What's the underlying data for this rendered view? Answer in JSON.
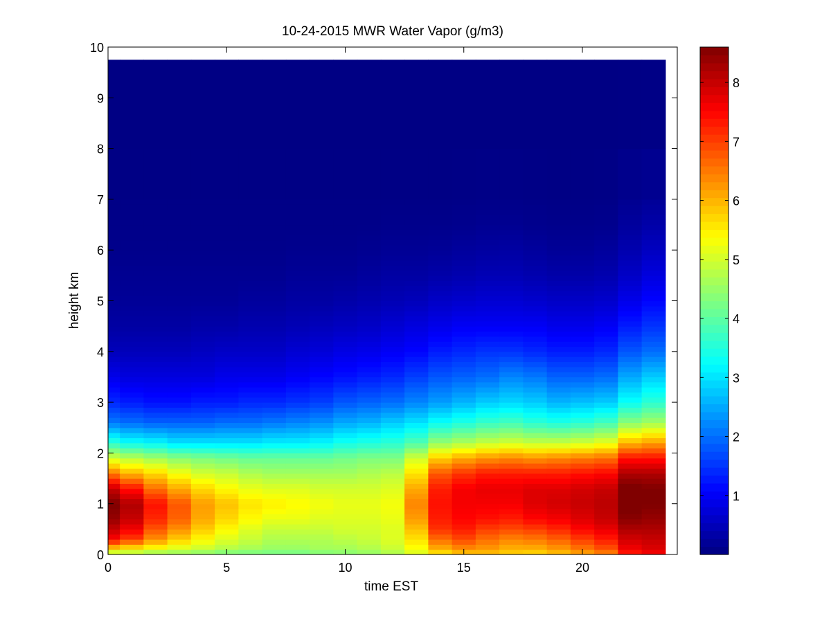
{
  "chart_data": {
    "type": "heatmap",
    "title": "10-24-2015 MWR Water Vapor (g/m3)",
    "xlabel": "time EST",
    "ylabel": "height km",
    "xlim": [
      0,
      24
    ],
    "ylim": [
      0,
      10
    ],
    "x_ticks": [
      0,
      5,
      10,
      15,
      20
    ],
    "y_ticks": [
      0,
      1,
      2,
      3,
      4,
      5,
      6,
      7,
      8,
      9,
      10
    ],
    "colorbar": {
      "colormap": "jet",
      "range": [
        0,
        8.6
      ],
      "ticks": [
        1,
        2,
        3,
        4,
        5,
        6,
        7,
        8
      ]
    },
    "x_range_data": [
      0,
      23.5
    ],
    "y_range_data": [
      0,
      9.75
    ],
    "x": [
      0,
      1,
      2,
      3,
      4,
      5,
      6,
      7,
      8,
      9,
      10,
      11,
      12,
      13,
      14,
      15,
      16,
      17,
      18,
      19,
      20,
      21,
      22,
      23
    ],
    "height_profiles": {
      "heights": [
        0,
        0.1,
        0.3,
        0.5,
        0.7,
        1.0,
        1.3,
        1.6,
        1.9,
        2.2,
        2.6,
        3.0,
        3.5,
        4.0,
        4.5,
        5.0,
        5.5,
        6.0,
        6.5,
        7.0,
        8.0,
        9.75
      ],
      "values_by_time": [
        [
          4.5,
          5.6,
          7.5,
          8.0,
          8.4,
          8.6,
          8.0,
          6.5,
          5.0,
          3.6,
          2.1,
          1.4,
          0.9,
          0.5,
          0.3,
          0.2,
          0.15,
          0.1,
          0.08,
          0.06,
          0.04,
          0.03
        ],
        [
          4.5,
          5.4,
          7.0,
          7.6,
          8.0,
          8.2,
          7.4,
          6.0,
          4.8,
          3.3,
          2.0,
          1.3,
          0.8,
          0.5,
          0.3,
          0.2,
          0.15,
          0.1,
          0.08,
          0.06,
          0.04,
          0.03
        ],
        [
          4.3,
          5.2,
          6.3,
          6.8,
          7.2,
          7.4,
          6.6,
          5.7,
          4.6,
          3.2,
          1.9,
          1.2,
          0.8,
          0.5,
          0.3,
          0.2,
          0.15,
          0.1,
          0.08,
          0.06,
          0.04,
          0.03
        ],
        [
          4.3,
          5.0,
          5.8,
          6.3,
          6.7,
          6.8,
          6.1,
          5.3,
          4.4,
          3.0,
          1.9,
          1.2,
          0.8,
          0.5,
          0.3,
          0.2,
          0.15,
          0.1,
          0.08,
          0.06,
          0.04,
          0.03
        ],
        [
          4.2,
          4.9,
          5.4,
          5.8,
          6.1,
          6.2,
          5.7,
          5.0,
          4.3,
          3.0,
          1.9,
          1.3,
          0.8,
          0.55,
          0.35,
          0.2,
          0.15,
          0.1,
          0.08,
          0.06,
          0.04,
          0.03
        ],
        [
          4.1,
          4.7,
          5.1,
          5.4,
          5.7,
          5.9,
          5.4,
          4.9,
          4.2,
          3.0,
          2.0,
          1.3,
          0.9,
          0.6,
          0.35,
          0.2,
          0.15,
          0.1,
          0.08,
          0.06,
          0.04,
          0.03
        ],
        [
          4.1,
          4.6,
          4.9,
          5.1,
          5.4,
          5.6,
          5.2,
          4.7,
          4.1,
          3.0,
          2.0,
          1.4,
          0.9,
          0.6,
          0.4,
          0.25,
          0.15,
          0.1,
          0.08,
          0.06,
          0.04,
          0.03
        ],
        [
          4.1,
          4.5,
          4.7,
          4.9,
          5.2,
          5.5,
          5.1,
          4.6,
          4.1,
          3.1,
          2.1,
          1.4,
          0.9,
          0.6,
          0.4,
          0.25,
          0.15,
          0.1,
          0.08,
          0.06,
          0.04,
          0.03
        ],
        [
          4.1,
          4.5,
          4.7,
          4.9,
          5.2,
          5.4,
          5.1,
          4.6,
          4.1,
          3.1,
          2.2,
          1.5,
          1.0,
          0.7,
          0.45,
          0.3,
          0.2,
          0.12,
          0.08,
          0.06,
          0.04,
          0.03
        ],
        [
          4.2,
          4.6,
          4.7,
          4.9,
          5.1,
          5.3,
          5.0,
          4.6,
          4.1,
          3.2,
          2.3,
          1.6,
          1.1,
          0.75,
          0.5,
          0.3,
          0.2,
          0.12,
          0.08,
          0.06,
          0.04,
          0.03
        ],
        [
          4.3,
          4.6,
          4.8,
          5.0,
          5.1,
          5.2,
          5.0,
          4.6,
          4.2,
          3.4,
          2.5,
          1.8,
          1.2,
          0.85,
          0.55,
          0.35,
          0.2,
          0.12,
          0.08,
          0.06,
          0.04,
          0.03
        ],
        [
          4.4,
          4.7,
          4.9,
          5.0,
          5.1,
          5.2,
          5.0,
          4.7,
          4.3,
          3.5,
          2.6,
          1.9,
          1.3,
          0.9,
          0.6,
          0.4,
          0.25,
          0.15,
          0.08,
          0.06,
          0.04,
          0.03
        ],
        [
          4.6,
          4.9,
          5.1,
          5.1,
          5.2,
          5.3,
          5.1,
          4.8,
          4.3,
          3.6,
          2.8,
          2.0,
          1.4,
          1.0,
          0.7,
          0.45,
          0.3,
          0.18,
          0.1,
          0.06,
          0.04,
          0.03
        ],
        [
          5.0,
          5.3,
          5.6,
          5.9,
          6.2,
          6.4,
          6.1,
          5.6,
          5.0,
          3.9,
          3.0,
          2.2,
          1.6,
          1.1,
          0.8,
          0.5,
          0.3,
          0.18,
          0.1,
          0.06,
          0.04,
          0.03
        ],
        [
          5.4,
          6.0,
          6.6,
          7.1,
          7.3,
          7.4,
          7.3,
          6.8,
          5.8,
          4.5,
          3.3,
          2.4,
          1.8,
          1.3,
          0.9,
          0.6,
          0.35,
          0.2,
          0.1,
          0.06,
          0.04,
          0.03
        ],
        [
          5.7,
          6.3,
          6.9,
          7.3,
          7.5,
          7.6,
          7.6,
          7.1,
          6.1,
          4.7,
          3.5,
          2.6,
          1.9,
          1.4,
          1.0,
          0.65,
          0.4,
          0.25,
          0.12,
          0.07,
          0.04,
          0.03
        ],
        [
          5.8,
          6.2,
          6.6,
          7.0,
          7.4,
          7.6,
          7.7,
          7.3,
          6.3,
          4.9,
          3.7,
          2.8,
          2.0,
          1.5,
          1.0,
          0.7,
          0.45,
          0.28,
          0.15,
          0.08,
          0.04,
          0.03
        ],
        [
          5.7,
          6.0,
          6.4,
          6.9,
          7.3,
          7.6,
          7.7,
          7.3,
          6.4,
          5.0,
          3.8,
          2.9,
          2.2,
          1.5,
          1.0,
          0.7,
          0.45,
          0.3,
          0.15,
          0.08,
          0.04,
          0.03
        ],
        [
          5.6,
          6.0,
          6.5,
          7.0,
          7.5,
          7.8,
          7.8,
          7.3,
          6.3,
          4.9,
          3.6,
          2.8,
          2.1,
          1.4,
          1.0,
          0.65,
          0.4,
          0.25,
          0.12,
          0.07,
          0.04,
          0.03
        ],
        [
          5.8,
          6.2,
          6.7,
          7.2,
          7.6,
          7.9,
          7.8,
          7.3,
          6.4,
          4.9,
          3.5,
          2.6,
          1.9,
          1.3,
          0.9,
          0.6,
          0.35,
          0.2,
          0.1,
          0.06,
          0.04,
          0.03
        ],
        [
          6.0,
          6.5,
          7.0,
          7.5,
          7.8,
          8.0,
          7.9,
          7.4,
          6.5,
          5.0,
          3.6,
          2.7,
          1.9,
          1.3,
          0.9,
          0.6,
          0.35,
          0.2,
          0.1,
          0.06,
          0.04,
          0.03
        ],
        [
          6.3,
          6.8,
          7.3,
          7.7,
          8.0,
          8.1,
          8.0,
          7.5,
          6.6,
          5.2,
          3.8,
          2.8,
          2.0,
          1.4,
          1.0,
          0.65,
          0.4,
          0.25,
          0.12,
          0.07,
          0.04,
          0.03
        ],
        [
          7.2,
          7.6,
          7.9,
          8.2,
          8.5,
          8.7,
          8.7,
          8.2,
          7.4,
          6.0,
          4.4,
          3.3,
          2.5,
          1.8,
          1.3,
          0.9,
          0.6,
          0.4,
          0.25,
          0.15,
          0.06,
          0.03
        ],
        [
          7.5,
          7.8,
          8.0,
          8.2,
          8.4,
          8.6,
          8.6,
          8.2,
          7.4,
          6.2,
          4.6,
          3.6,
          2.8,
          2.0,
          1.5,
          1.1,
          0.8,
          0.55,
          0.35,
          0.2,
          0.08,
          0.03
        ]
      ]
    }
  }
}
